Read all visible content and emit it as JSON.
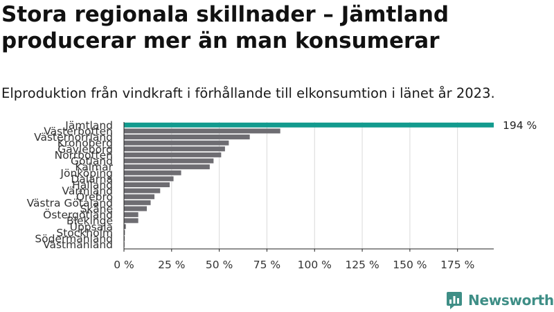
{
  "title": "Stora regionala skillnader – Jämtland producerar mer än man konsumerar",
  "subtitle": "Elproduktion från vindkraft i förhållande till elkonsumtion i länet år 2023.",
  "brand": {
    "name": "Newsworthy",
    "icon": "newsworthy-logo-icon"
  },
  "colors": {
    "highlight": "#139b8e",
    "bar": "#6e6d72",
    "grid": "#d9d9d9",
    "axis": "#222222"
  },
  "chart_data": {
    "type": "bar",
    "orientation": "horizontal",
    "categories": [
      "Jämtland",
      "Västerbotten",
      "Västernorrland",
      "Kronoberg",
      "Gävleborg",
      "Norrbotten",
      "Gotland",
      "Kalmar",
      "Jönköping",
      "Dalarna",
      "Halland",
      "Värmland",
      "Örebro",
      "Västra Götaland",
      "Skåne",
      "Östergötland",
      "Blekinge",
      "Uppsala",
      "Stockholm",
      "Södermanland",
      "Västmanland"
    ],
    "values": [
      194,
      82,
      66,
      55,
      53,
      51,
      47,
      45,
      30,
      26,
      24,
      19,
      16,
      14,
      12,
      7.5,
      7.5,
      1,
      0.5,
      0.4,
      0.3
    ],
    "highlight": "Jämtland",
    "data_labels": [
      {
        "category": "Jämtland",
        "text": "194 %"
      }
    ],
    "xlim": [
      0,
      194
    ],
    "xticks": [
      0,
      25,
      50,
      75,
      100,
      125,
      150,
      175
    ],
    "xtick_labels": [
      "0 %",
      "25 %",
      "50 %",
      "75 %",
      "100 %",
      "125 %",
      "150 %",
      "175 %"
    ],
    "grid": true,
    "xlabel": "",
    "ylabel": ""
  }
}
